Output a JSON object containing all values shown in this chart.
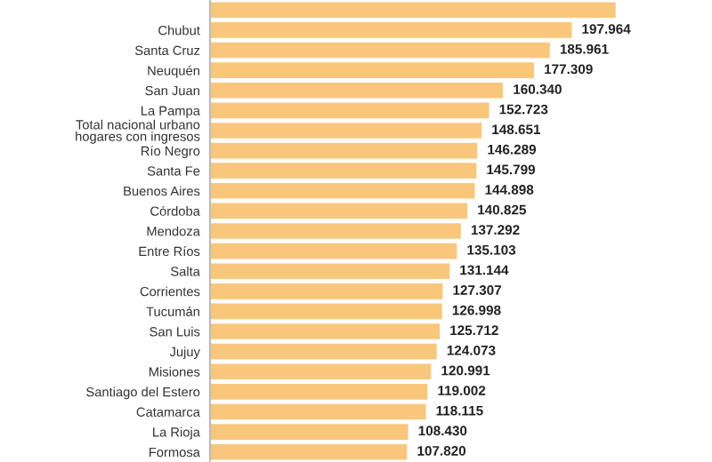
{
  "chart_data": {
    "type": "bar",
    "orientation": "horizontal",
    "color": "#f8c77c",
    "categories": [
      null,
      "Chubut",
      "Santa Cruz",
      "Neuquén",
      "San Juan",
      "La Pampa",
      "Total nacional urbano\nhogares con ingresos",
      "Río Negro",
      "Santa Fe",
      "Buenos Aires",
      "Córdoba",
      "Mendoza",
      "Entre Ríos",
      "Salta",
      "Corrientes",
      "Tucumán",
      "San Luis",
      "Jujuy",
      "Misiones",
      "Santiago del Estero",
      "Catamarca",
      "La Rioja",
      "Formosa"
    ],
    "values": [
      222000,
      197964,
      185961,
      177309,
      160340,
      152723,
      148651,
      146289,
      145799,
      144898,
      140825,
      137292,
      135103,
      131144,
      127307,
      126998,
      125712,
      124073,
      120991,
      119002,
      118115,
      108430,
      107820
    ],
    "value_labels": [
      null,
      "197.964",
      "185.961",
      "177.309",
      "160.340",
      "152.723",
      "148.651",
      "146.289",
      "145.799",
      "144.898",
      "140.825",
      "137.292",
      "135.103",
      "131.144",
      "127.307",
      "126.998",
      "125.712",
      "124.073",
      "120.991",
      "119.002",
      "118.115",
      "108.430",
      "107.820"
    ]
  }
}
